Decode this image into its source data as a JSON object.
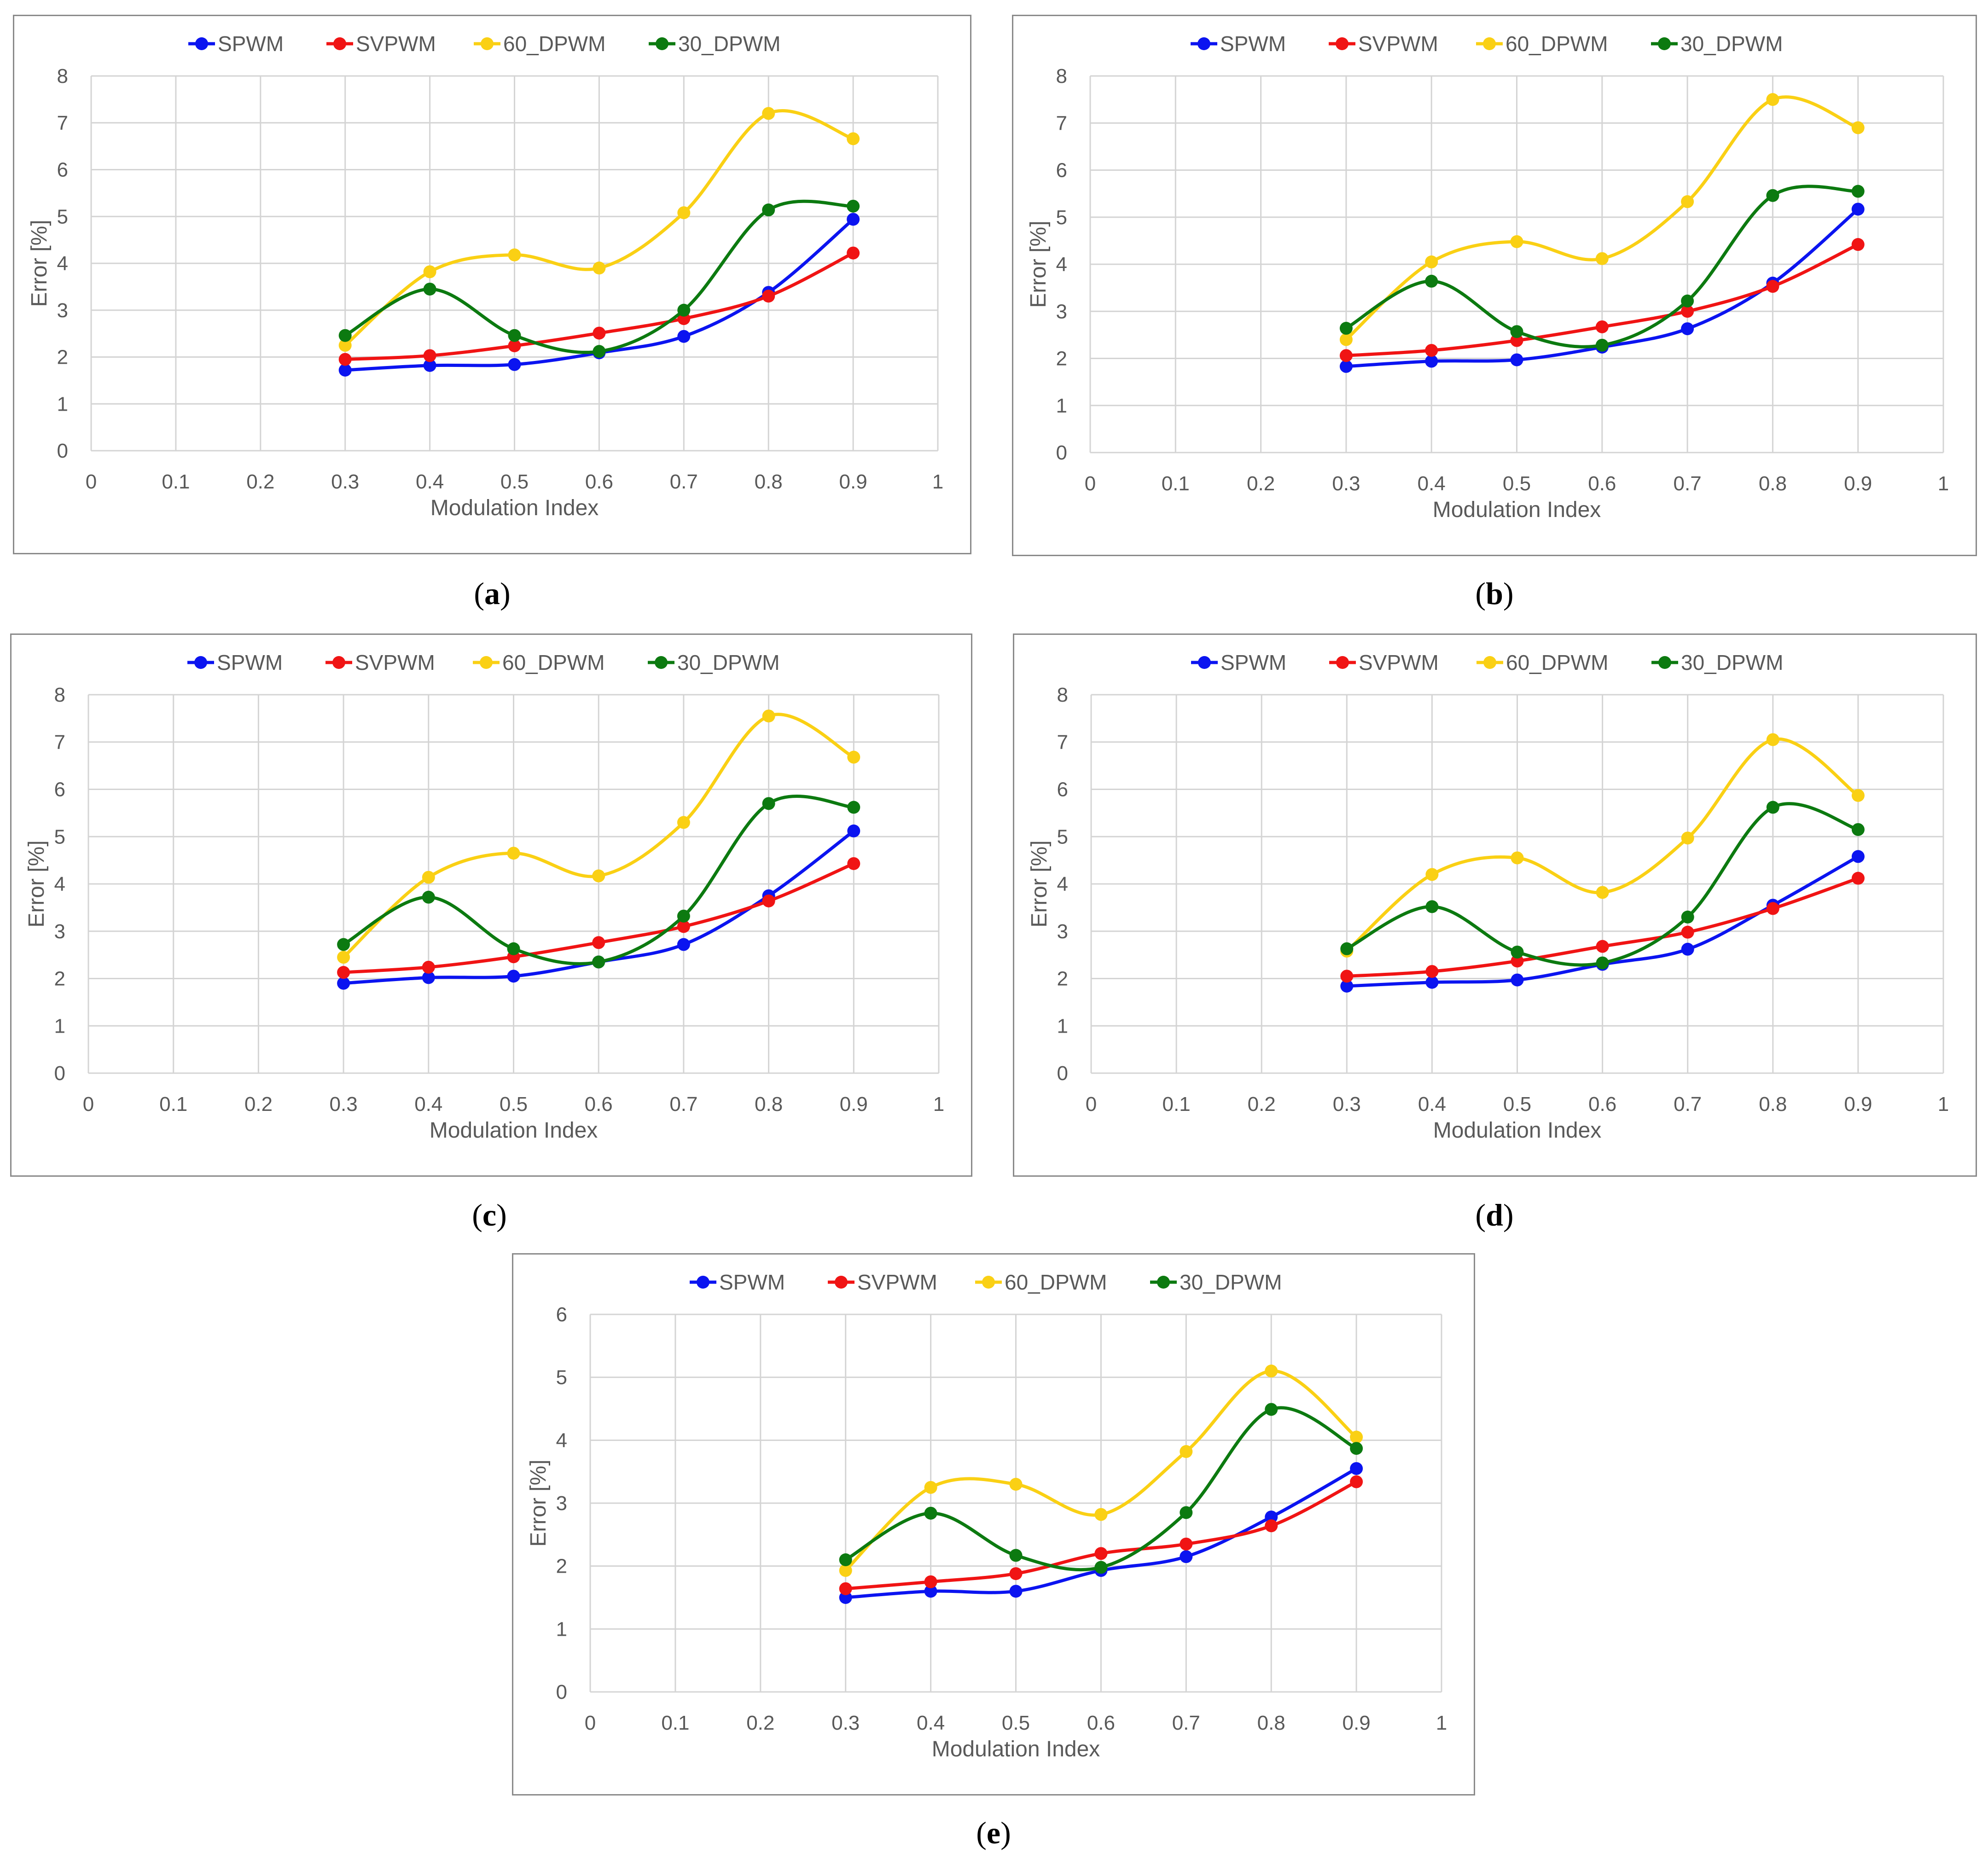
{
  "figure": {
    "captions": [
      "a",
      "b",
      "c",
      "d",
      "e"
    ]
  },
  "colors": {
    "SPWM": "#0b14f0",
    "SVPWM": "#f01414",
    "60_DPWM": "#fad014",
    "30_DPWM": "#0c7a10",
    "grid": "#d4d4d4",
    "axis_text": "#595959"
  },
  "chart_data": [
    {
      "id": "a",
      "type": "line",
      "smooth": true,
      "xlabel": "Modulation Index",
      "ylabel": "Error [%]",
      "xlim": [
        0,
        1
      ],
      "ylim": [
        0,
        8
      ],
      "xticks": [
        "0",
        "0.1",
        "0.2",
        "0.3",
        "0.4",
        "0.5",
        "0.6",
        "0.7",
        "0.8",
        "0.9",
        "1"
      ],
      "yticks": [
        "0",
        "1",
        "2",
        "3",
        "4",
        "5",
        "6",
        "7",
        "8"
      ],
      "legend_position": "top",
      "grid": true,
      "x": [
        0.3,
        0.4,
        0.5,
        0.6,
        0.7,
        0.8,
        0.9
      ],
      "series": [
        {
          "name": "SPWM",
          "values": [
            1.72,
            1.82,
            1.84,
            2.09,
            2.44,
            3.38,
            4.94
          ]
        },
        {
          "name": "SVPWM",
          "values": [
            1.95,
            2.03,
            2.24,
            2.51,
            2.82,
            3.3,
            4.22
          ]
        },
        {
          "name": "60_DPWM",
          "values": [
            2.25,
            3.82,
            4.18,
            3.9,
            5.08,
            7.2,
            6.66
          ]
        },
        {
          "name": "30_DPWM",
          "values": [
            2.46,
            3.45,
            2.46,
            2.12,
            3.0,
            5.14,
            5.22
          ]
        }
      ]
    },
    {
      "id": "b",
      "type": "line",
      "smooth": true,
      "xlabel": "Modulation Index",
      "ylabel": "Error [%]",
      "xlim": [
        0,
        1
      ],
      "ylim": [
        0,
        8
      ],
      "xticks": [
        "0",
        "0.1",
        "0.2",
        "0.3",
        "0.4",
        "0.5",
        "0.6",
        "0.7",
        "0.8",
        "0.9",
        "1"
      ],
      "yticks": [
        "0",
        "1",
        "2",
        "3",
        "4",
        "5",
        "6",
        "7",
        "8"
      ],
      "legend_position": "top",
      "grid": true,
      "x": [
        0.3,
        0.4,
        0.5,
        0.6,
        0.7,
        0.8,
        0.9
      ],
      "series": [
        {
          "name": "SPWM",
          "values": [
            1.83,
            1.94,
            1.97,
            2.24,
            2.63,
            3.6,
            5.17
          ]
        },
        {
          "name": "SVPWM",
          "values": [
            2.06,
            2.17,
            2.38,
            2.67,
            3.0,
            3.53,
            4.42
          ]
        },
        {
          "name": "60_DPWM",
          "values": [
            2.4,
            4.05,
            4.48,
            4.12,
            5.33,
            7.5,
            6.9
          ]
        },
        {
          "name": "30_DPWM",
          "values": [
            2.64,
            3.64,
            2.57,
            2.28,
            3.22,
            5.46,
            5.55
          ]
        }
      ]
    },
    {
      "id": "c",
      "type": "line",
      "smooth": true,
      "xlabel": "Modulation Index",
      "ylabel": "Error [%]",
      "xlim": [
        0,
        1
      ],
      "ylim": [
        0,
        8
      ],
      "xticks": [
        "0",
        "0.1",
        "0.2",
        "0.3",
        "0.4",
        "0.5",
        "0.6",
        "0.7",
        "0.8",
        "0.9",
        "1"
      ],
      "yticks": [
        "0",
        "1",
        "2",
        "3",
        "4",
        "5",
        "6",
        "7",
        "8"
      ],
      "legend_position": "top",
      "grid": true,
      "x": [
        0.3,
        0.4,
        0.5,
        0.6,
        0.7,
        0.8,
        0.9
      ],
      "series": [
        {
          "name": "SPWM",
          "values": [
            1.9,
            2.02,
            2.05,
            2.35,
            2.72,
            3.75,
            5.12
          ]
        },
        {
          "name": "SVPWM",
          "values": [
            2.13,
            2.24,
            2.46,
            2.76,
            3.1,
            3.64,
            4.43
          ]
        },
        {
          "name": "60_DPWM",
          "values": [
            2.45,
            4.14,
            4.65,
            4.17,
            5.3,
            7.55,
            6.68
          ]
        },
        {
          "name": "30_DPWM",
          "values": [
            2.72,
            3.72,
            2.63,
            2.35,
            3.32,
            5.7,
            5.62
          ]
        }
      ]
    },
    {
      "id": "d",
      "type": "line",
      "smooth": true,
      "xlabel": "Modulation Index",
      "ylabel": "Error [%]",
      "xlim": [
        0,
        1
      ],
      "ylim": [
        0,
        8
      ],
      "xticks": [
        "0",
        "0.1",
        "0.2",
        "0.3",
        "0.4",
        "0.5",
        "0.6",
        "0.7",
        "0.8",
        "0.9",
        "1"
      ],
      "yticks": [
        "0",
        "1",
        "2",
        "3",
        "4",
        "5",
        "6",
        "7",
        "8"
      ],
      "legend_position": "top",
      "grid": true,
      "x": [
        0.3,
        0.4,
        0.5,
        0.6,
        0.7,
        0.8,
        0.9
      ],
      "series": [
        {
          "name": "SPWM",
          "values": [
            1.84,
            1.92,
            1.97,
            2.3,
            2.62,
            3.55,
            4.58
          ]
        },
        {
          "name": "SVPWM",
          "values": [
            2.05,
            2.15,
            2.37,
            2.68,
            2.98,
            3.48,
            4.12
          ]
        },
        {
          "name": "60_DPWM",
          "values": [
            2.58,
            4.2,
            4.55,
            3.82,
            4.97,
            7.05,
            5.87
          ]
        },
        {
          "name": "30_DPWM",
          "values": [
            2.63,
            3.52,
            2.56,
            2.33,
            3.3,
            5.62,
            5.15
          ]
        }
      ]
    },
    {
      "id": "e",
      "type": "line",
      "smooth": true,
      "xlabel": "Modulation Index",
      "ylabel": "Error [%]",
      "xlim": [
        0,
        1
      ],
      "ylim": [
        0,
        6
      ],
      "xticks": [
        "0",
        "0.1",
        "0.2",
        "0.3",
        "0.4",
        "0.5",
        "0.6",
        "0.7",
        "0.8",
        "0.9",
        "1"
      ],
      "yticks": [
        "0",
        "1",
        "2",
        "3",
        "4",
        "5",
        "6"
      ],
      "legend_position": "top",
      "grid": true,
      "x": [
        0.3,
        0.4,
        0.5,
        0.6,
        0.7,
        0.8,
        0.9
      ],
      "series": [
        {
          "name": "SPWM",
          "values": [
            1.5,
            1.6,
            1.6,
            1.93,
            2.15,
            2.78,
            3.55
          ]
        },
        {
          "name": "SVPWM",
          "values": [
            1.64,
            1.75,
            1.88,
            2.2,
            2.35,
            2.64,
            3.34
          ]
        },
        {
          "name": "60_DPWM",
          "values": [
            1.93,
            3.25,
            3.3,
            2.82,
            3.82,
            5.1,
            4.05
          ]
        },
        {
          "name": "30_DPWM",
          "values": [
            2.1,
            2.84,
            2.17,
            1.98,
            2.85,
            4.49,
            3.87
          ]
        }
      ]
    }
  ]
}
